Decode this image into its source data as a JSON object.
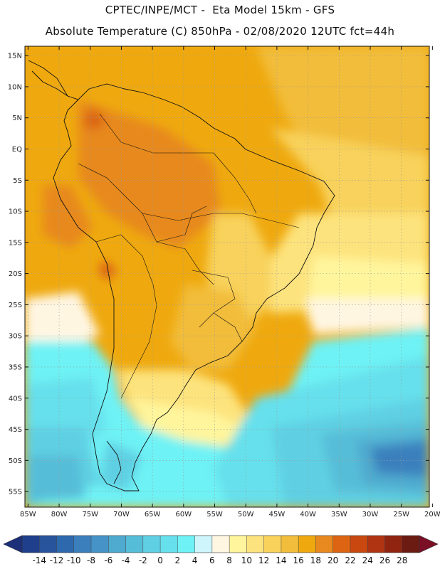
{
  "header": {
    "line1": "CPTEC/INPE/MCT -  Eta Model 15km - GFS",
    "line2": "Absolute Temperature (C) 850hPa - 02/08/2020 12UTC fct=44h"
  },
  "map": {
    "lat_labels": [
      "15N",
      "10N",
      "5N",
      "EQ",
      "5S",
      "10S",
      "15S",
      "20S",
      "25S",
      "30S",
      "35S",
      "40S",
      "45S",
      "50S",
      "55S"
    ],
    "lon_labels": [
      "85W",
      "80W",
      "75W",
      "70W",
      "65W",
      "60W",
      "55W",
      "50W",
      "45W",
      "40W",
      "35W",
      "30W",
      "25W",
      "20W"
    ],
    "lat_values": [
      15,
      10,
      5,
      0,
      -5,
      -10,
      -15,
      -20,
      -25,
      -30,
      -35,
      -40,
      -45,
      -50,
      -55
    ],
    "lon_values": [
      -85,
      -80,
      -75,
      -70,
      -65,
      -60,
      -55,
      -50,
      -45,
      -40,
      -35,
      -30,
      -25,
      -20
    ],
    "extent": {
      "lon_min": -85.5,
      "lon_max": -20.5,
      "lat_min": -57.5,
      "lat_max": 16.5
    }
  },
  "colorbar": {
    "labels": [
      "-14",
      "-12",
      "-10",
      "-8",
      "-6",
      "-4",
      "-2",
      "0",
      "2",
      "4",
      "6",
      "8",
      "10",
      "12",
      "14",
      "16",
      "18",
      "20",
      "22",
      "24",
      "26",
      "28"
    ],
    "colors": [
      "#1f3f8c",
      "#27549b",
      "#2e69ad",
      "#3b80bd",
      "#4693c7",
      "#4faacf",
      "#56bdd8",
      "#5fd0e3",
      "#66e0ec",
      "#6ef2f5",
      "#cdf5fb",
      "#fff6e2",
      "#fff59c",
      "#fde37d",
      "#f8d25b",
      "#f2bd3b",
      "#efa90f",
      "#e7891e",
      "#dc6412",
      "#c84810",
      "#b13412",
      "#8f2411",
      "#6c1b12"
    ],
    "under_color": "#1c2f7a",
    "over_color": "#7a0f26"
  }
}
